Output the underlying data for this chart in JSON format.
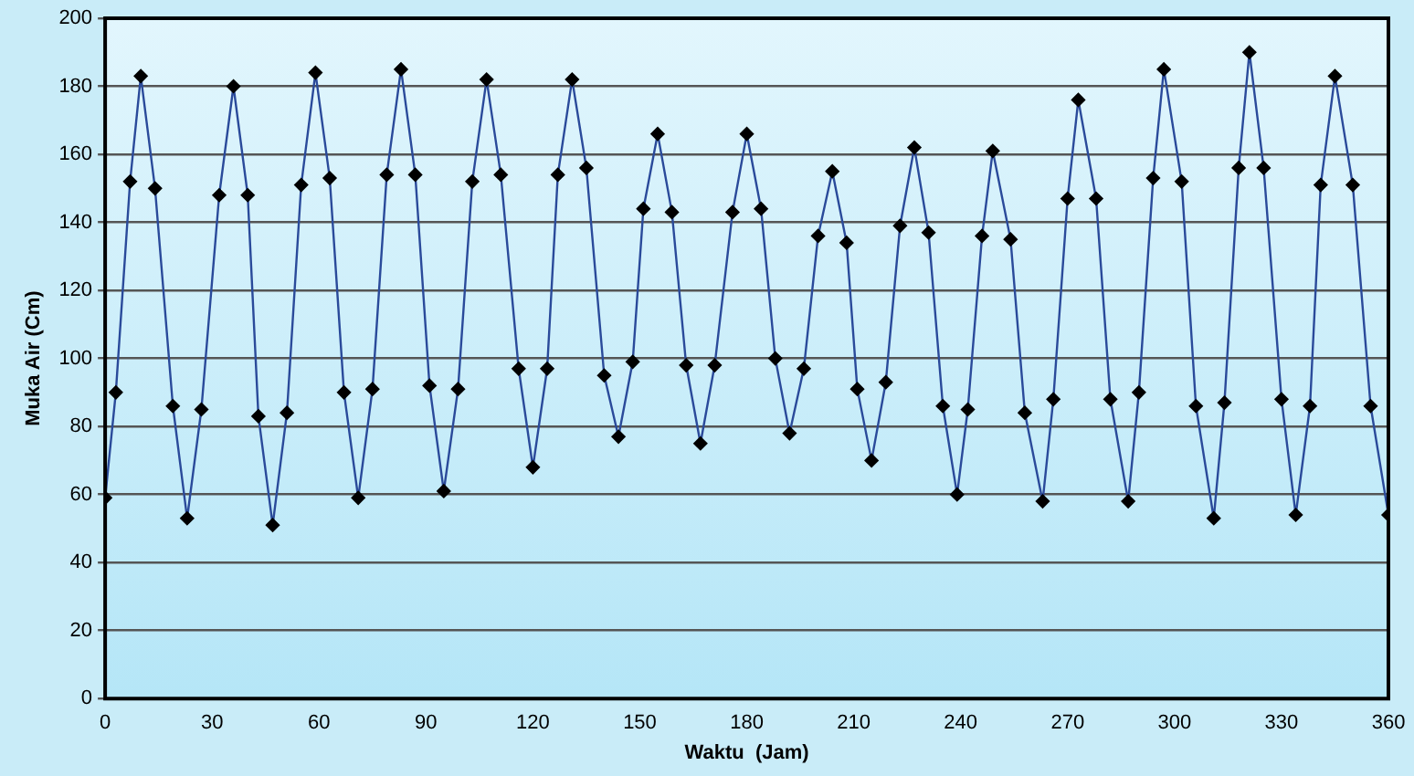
{
  "chart_data": {
    "type": "line",
    "xlabel": "Waktu  (Jam)",
    "ylabel": "Muka Air (Cm)",
    "marker": "diamond",
    "line_style": "solid",
    "grid": "y",
    "legend": false,
    "xlim": [
      0,
      360
    ],
    "xticks": [
      0,
      30,
      60,
      90,
      120,
      150,
      180,
      210,
      240,
      270,
      300,
      330,
      360
    ],
    "ylim": [
      0,
      200
    ],
    "yticks": [
      0,
      20,
      40,
      60,
      80,
      100,
      120,
      140,
      160,
      180,
      200
    ],
    "series": [
      {
        "color": "#000000",
        "x": [
          0,
          3,
          7,
          10,
          14,
          19,
          23,
          27,
          32,
          36,
          40,
          43,
          47,
          51,
          55,
          59,
          63,
          67,
          71,
          75,
          79,
          83,
          87,
          91,
          95,
          99,
          103,
          107,
          111,
          116,
          120,
          124,
          127,
          131,
          135,
          140,
          144,
          148,
          151,
          155,
          159,
          163,
          167,
          171,
          176,
          180,
          184,
          188,
          192,
          196,
          200,
          204,
          208,
          211,
          215,
          219,
          223,
          227,
          231,
          235,
          239,
          242,
          246,
          249,
          254,
          258,
          263,
          266,
          270,
          273,
          278,
          282,
          287,
          290,
          294,
          297,
          302,
          306,
          311,
          314,
          318,
          321,
          325,
          330,
          334,
          338,
          341,
          345,
          350,
          355,
          360
        ],
        "values": [
          59,
          90,
          152,
          183,
          150,
          86,
          53,
          85,
          148,
          180,
          148,
          83,
          51,
          84,
          151,
          184,
          153,
          90,
          59,
          91,
          154,
          185,
          154,
          92,
          61,
          91,
          152,
          182,
          154,
          97,
          68,
          97,
          154,
          182,
          156,
          95,
          77,
          99,
          144,
          166,
          143,
          98,
          75,
          98,
          143,
          166,
          144,
          100,
          78,
          97,
          136,
          155,
          134,
          91,
          70,
          93,
          139,
          162,
          137,
          86,
          60,
          85,
          136,
          161,
          135,
          84,
          58,
          88,
          147,
          176,
          147,
          88,
          58,
          90,
          153,
          185,
          152,
          86,
          53,
          87,
          156,
          190,
          156,
          88,
          54,
          86,
          151,
          183,
          151,
          86,
          54
        ]
      }
    ]
  }
}
